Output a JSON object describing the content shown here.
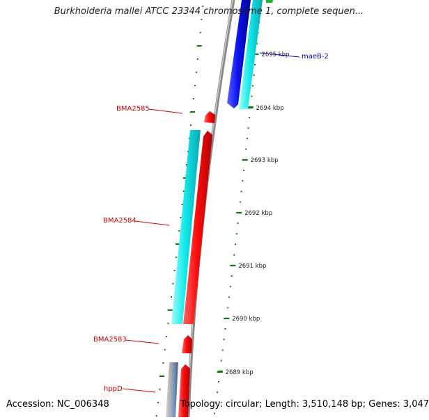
{
  "title": "Burkholderia mallei ATCC 23344 chromosome 1, complete sequen...",
  "accession": "Accession: NC_006348",
  "summary": "Topology: circular; Length: 3,510,148 bp; Genes: 3,047",
  "colors": {
    "forward_gene": "#ff1010",
    "reverse_gene": "#0b12e8",
    "cds_cyan": "#18f0f0",
    "backbone": "#888888",
    "tick": "#0a7d0a",
    "label_red": "#d00000",
    "label_blue": "#0000b0"
  },
  "ticks": [
    {
      "label": "2695 kbp"
    },
    {
      "label": "2694 kbp"
    },
    {
      "label": "2693 kbp"
    },
    {
      "label": "2692 kbp"
    },
    {
      "label": "2691 kbp"
    },
    {
      "label": "2690 kbp"
    },
    {
      "label": "2689 kbp"
    }
  ],
  "genes": [
    {
      "name": "maeB-2"
    },
    {
      "name": "BMA2585"
    },
    {
      "name": "BMA2584"
    },
    {
      "name": "BMA2583"
    },
    {
      "name": "hppD"
    }
  ]
}
